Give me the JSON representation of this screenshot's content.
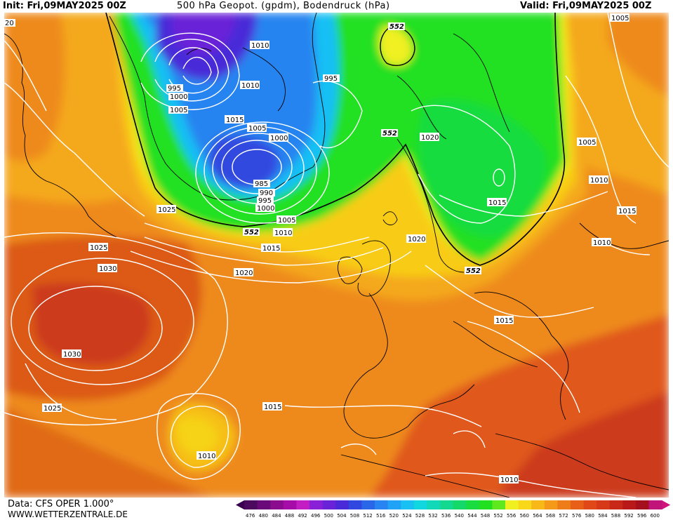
{
  "header": {
    "init": "Init: Fri,09MAY2025 00Z",
    "title": "500 hPa Geopot. (gpdm), Bodendruck (hPa)",
    "valid": "Valid: Fri,09MAY2025 00Z"
  },
  "footer": {
    "data_source": "Data: CFS OPER 1.000°",
    "url": "WWW.WETTERZENTRALE.DE"
  },
  "scale": {
    "values": [
      "476",
      "480",
      "484",
      "488",
      "492",
      "496",
      "500",
      "504",
      "508",
      "512",
      "516",
      "520",
      "524",
      "528",
      "532",
      "536",
      "540",
      "544",
      "548",
      "552",
      "556",
      "560",
      "564",
      "568",
      "572",
      "576",
      "580",
      "584",
      "588",
      "592",
      "596",
      "600"
    ],
    "colors": [
      "#4b0a5e",
      "#6a0a7a",
      "#8b0c8e",
      "#a60ca8",
      "#c31ec4",
      "#8a1fd8",
      "#6a22d8",
      "#4a2ad8",
      "#3048e0",
      "#2a66e8",
      "#2884f0",
      "#20a2f6",
      "#18c0f4",
      "#10d6e0",
      "#10d8b8",
      "#12d890",
      "#14d868",
      "#18dc40",
      "#20e020",
      "#60e81e",
      "#f0f020",
      "#f8d818",
      "#f8b818",
      "#f49a18",
      "#ee7c18",
      "#e86018",
      "#e04818",
      "#d63818",
      "#c82818",
      "#b81818",
      "#a4101c",
      "#c0147a"
    ]
  },
  "map": {
    "isobar_labels": [
      "1025",
      "1030",
      "1030",
      "1025",
      "1010",
      "1015",
      "1020",
      "1015",
      "1010",
      "1005",
      "1000",
      "995",
      "990",
      "985",
      "1000",
      "1005",
      "1010",
      "1015",
      "1010",
      "995",
      "1000",
      "1005",
      "995",
      "1020",
      "1015",
      "1020",
      "1015",
      "1010",
      "1015",
      "1010",
      "1005",
      "1005",
      "1010",
      "20",
      "1025"
    ],
    "geopot_labels": [
      "552",
      "552",
      "552",
      "552"
    ]
  },
  "colors": {
    "contour": "#ffffff",
    "coast": "#000000",
    "contour552": "#000000"
  }
}
